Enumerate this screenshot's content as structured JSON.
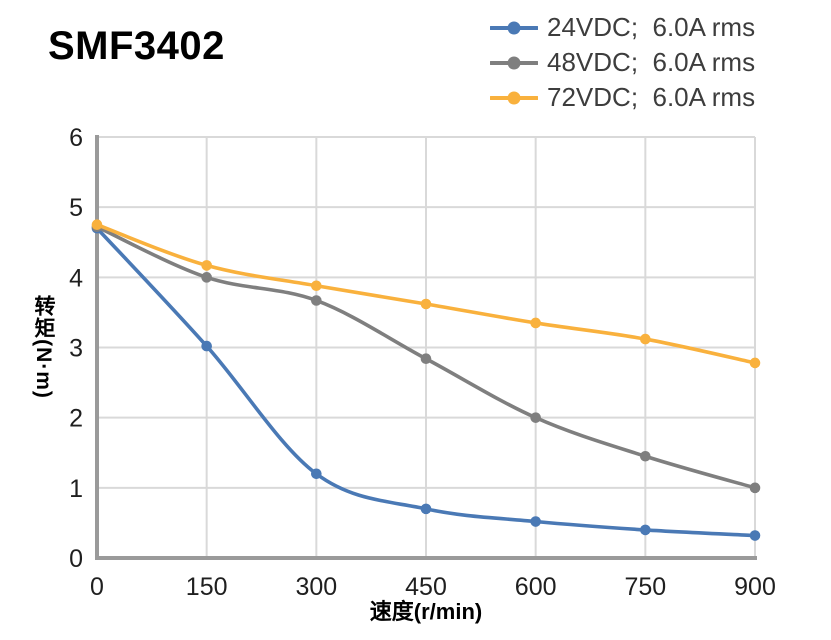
{
  "title": "SMF3402",
  "colors": {
    "blue": "#4a79b5",
    "gray": "#7f7f7f",
    "yellow": "#f9b13d",
    "grid": "#d9d9d9",
    "axis": "#9a9a9a",
    "tick_text": "#1f1f1f"
  },
  "chart_data": {
    "type": "line",
    "title": "SMF3402",
    "x": [
      0,
      150,
      300,
      450,
      600,
      750,
      900
    ],
    "series": [
      {
        "name": "24VDC;  6.0A rms",
        "color": "#4a79b5",
        "values": [
          4.7,
          3.02,
          1.2,
          0.7,
          0.52,
          0.4,
          0.32
        ]
      },
      {
        "name": "48VDC;  6.0A rms",
        "color": "#7f7f7f",
        "values": [
          4.72,
          4.0,
          3.67,
          2.84,
          2.0,
          1.45,
          1.0
        ]
      },
      {
        "name": "72VDC;  6.0A rms",
        "color": "#f9b13d",
        "values": [
          4.75,
          4.17,
          3.88,
          3.62,
          3.35,
          3.12,
          2.78
        ]
      }
    ],
    "xlabel": "速度(r/min)",
    "ylabel": "转矩(N·m)",
    "xlim": [
      0,
      900
    ],
    "ylim": [
      0,
      6
    ],
    "xticks": [
      0,
      150,
      300,
      450,
      600,
      750,
      900
    ],
    "yticks": [
      0,
      1,
      2,
      3,
      4,
      5,
      6
    ],
    "grid": true,
    "legend_position": "top-right",
    "marker": "circle"
  }
}
